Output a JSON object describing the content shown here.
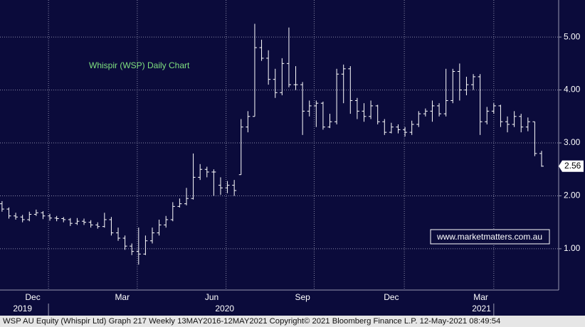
{
  "chart_data": {
    "type": "ohlc",
    "annotation": "Whispir (WSP) Daily Chart",
    "watermark": "www.marketmatters.com.au",
    "footer": "WSP AU Equity (Whispir Ltd) Graph 217  Weekly 13MAY2016-12MAY2021  Copyright© 2021 Bloomberg Finance L.P.  12-May-2021 08:49:54",
    "color": "#ffffff",
    "annotation_color": "#7fe07f",
    "x": [
      0,
      1,
      2,
      3,
      4,
      5,
      6,
      7,
      8,
      9,
      10,
      11,
      12,
      13,
      14,
      15,
      16,
      17,
      18,
      19,
      20,
      21,
      22,
      23,
      24,
      25,
      26,
      27,
      28,
      29,
      30,
      31,
      32,
      33,
      34,
      35,
      36,
      37,
      38,
      39,
      40,
      41,
      42,
      43,
      44,
      45,
      46,
      47,
      48,
      49,
      50,
      51,
      52,
      53,
      54,
      55,
      56,
      57,
      58,
      59,
      60,
      61,
      62,
      63,
      64,
      65,
      66,
      67,
      68,
      69,
      70,
      71,
      72,
      73,
      74,
      75,
      76,
      77,
      78,
      79
    ],
    "open": [
      1.85,
      1.75,
      1.62,
      1.6,
      1.55,
      1.65,
      1.68,
      1.62,
      1.58,
      1.57,
      1.55,
      1.48,
      1.52,
      1.5,
      1.45,
      1.42,
      1.55,
      1.3,
      1.2,
      1.05,
      0.95,
      0.9,
      1.15,
      1.3,
      1.45,
      1.55,
      1.8,
      1.85,
      1.95,
      2.35,
      2.5,
      2.45,
      2.2,
      2.15,
      2.2,
      2.4,
      3.3,
      3.5,
      4.8,
      4.6,
      4.2,
      3.95,
      4.5,
      4.1,
      4.1,
      3.6,
      3.7,
      3.75,
      3.3,
      3.4,
      4.3,
      4.4,
      3.8,
      3.6,
      3.5,
      3.7,
      3.4,
      3.2,
      3.3,
      3.25,
      3.2,
      3.35,
      3.55,
      3.6,
      3.7,
      3.55,
      3.8,
      4.35,
      4.0,
      4.1,
      4.25,
      3.4,
      3.6,
      3.7,
      3.4,
      3.35,
      3.5,
      3.3,
      3.4,
      2.8
    ],
    "high": [
      1.9,
      1.78,
      1.68,
      1.64,
      1.7,
      1.74,
      1.71,
      1.66,
      1.62,
      1.6,
      1.58,
      1.58,
      1.57,
      1.54,
      1.5,
      1.68,
      1.6,
      1.4,
      1.25,
      1.1,
      1.4,
      1.25,
      1.4,
      1.55,
      1.62,
      1.88,
      1.95,
      2.15,
      2.8,
      2.6,
      2.55,
      2.5,
      2.35,
      2.28,
      2.3,
      3.45,
      3.6,
      5.25,
      4.95,
      4.75,
      4.4,
      4.6,
      5.18,
      4.45,
      4.15,
      3.8,
      3.8,
      3.78,
      3.55,
      4.4,
      4.48,
      4.45,
      3.85,
      3.75,
      3.8,
      3.72,
      3.45,
      3.38,
      3.35,
      3.3,
      3.42,
      3.6,
      3.65,
      3.8,
      3.75,
      4.4,
      4.4,
      4.5,
      4.25,
      4.3,
      4.3,
      3.68,
      3.75,
      3.72,
      3.5,
      3.6,
      3.55,
      3.48,
      3.4,
      2.85
    ],
    "low": [
      1.7,
      1.57,
      1.55,
      1.5,
      1.52,
      1.62,
      1.56,
      1.53,
      1.52,
      1.5,
      1.43,
      1.45,
      1.45,
      1.4,
      1.38,
      1.4,
      1.25,
      1.15,
      0.98,
      0.88,
      0.7,
      0.88,
      1.1,
      1.25,
      1.4,
      1.52,
      1.78,
      1.82,
      1.93,
      2.3,
      2.35,
      2.0,
      2.02,
      2.05,
      2.0,
      2.4,
      3.2,
      3.5,
      4.55,
      4.1,
      3.85,
      3.9,
      4.05,
      4.0,
      3.15,
      3.5,
      3.3,
      3.25,
      3.28,
      3.35,
      3.75,
      3.55,
      3.45,
      3.4,
      3.45,
      3.35,
      3.15,
      3.18,
      3.18,
      3.12,
      3.15,
      3.3,
      3.5,
      3.4,
      3.5,
      3.5,
      3.75,
      3.8,
      3.9,
      4.0,
      3.15,
      3.35,
      3.55,
      3.3,
      3.2,
      3.3,
      3.2,
      3.22,
      2.75,
      2.55
    ],
    "close": [
      1.75,
      1.62,
      1.6,
      1.55,
      1.65,
      1.68,
      1.62,
      1.58,
      1.57,
      1.55,
      1.48,
      1.52,
      1.5,
      1.45,
      1.42,
      1.55,
      1.3,
      1.2,
      1.05,
      0.95,
      0.9,
      1.15,
      1.3,
      1.45,
      1.55,
      1.8,
      1.85,
      1.95,
      2.35,
      2.5,
      2.45,
      2.45,
      2.15,
      2.2,
      2.1,
      3.3,
      3.5,
      4.8,
      4.6,
      4.2,
      3.95,
      4.5,
      4.1,
      4.1,
      3.6,
      3.7,
      3.75,
      3.3,
      3.4,
      4.3,
      4.4,
      3.8,
      3.6,
      3.5,
      3.7,
      3.4,
      3.2,
      3.3,
      3.25,
      3.2,
      3.35,
      3.55,
      3.6,
      3.7,
      3.55,
      3.8,
      4.35,
      4.0,
      4.1,
      4.25,
      3.4,
      3.6,
      3.7,
      3.4,
      3.35,
      3.5,
      3.3,
      3.4,
      2.8,
      2.56
    ],
    "xlim": [
      -0.3,
      81.5
    ],
    "ylim": [
      0.22,
      5.7
    ],
    "yticks": [
      {
        "value": 1,
        "label": "1.00"
      },
      {
        "value": 2,
        "label": "2.00"
      },
      {
        "value": 3,
        "label": "3.00"
      },
      {
        "value": 4,
        "label": "4.00"
      },
      {
        "value": 5,
        "label": "5.00"
      }
    ],
    "xticks": [
      {
        "value": 4.5,
        "label": "Dec"
      },
      {
        "value": 17.6,
        "label": "Mar"
      },
      {
        "value": 30.7,
        "label": "Jun"
      },
      {
        "value": 44,
        "label": "Sep"
      },
      {
        "value": 57,
        "label": "Dec"
      },
      {
        "value": 70.1,
        "label": "Mar"
      }
    ],
    "year_labels": [
      {
        "value": 3,
        "label": "2019"
      },
      {
        "value": 32.6,
        "label": "2020"
      },
      {
        "value": 70.2,
        "label": "2021"
      }
    ],
    "xgrid": [
      6.8,
      19.8,
      32.8,
      45.7,
      58.9,
      72
    ],
    "year_separators": [
      6.8,
      72
    ],
    "grid": true
  }
}
